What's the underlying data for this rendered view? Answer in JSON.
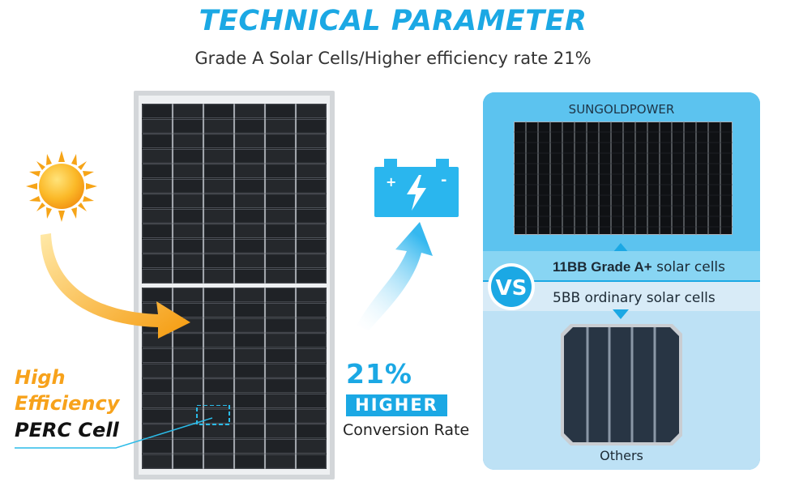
{
  "header": {
    "title": "TECHNICAL PARAMETER",
    "subtitle": "Grade A Solar Cells/Higher efficiency rate 21%"
  },
  "features": {
    "line1": "High",
    "line2": "Efficiency",
    "line3": "PERC Cell"
  },
  "stats": {
    "percent": "21%",
    "badge": "HIGHER",
    "caption": "Conversion Rate"
  },
  "comparison": {
    "brand": "SUNGOLDPOWER",
    "vs_label": "VS",
    "option_a_bold": "11BB Grade A+",
    "option_a_rest": " solar cells",
    "option_b": "5BB ordinary solar cells",
    "other_label": "Others"
  },
  "battery": {
    "plus": "+",
    "minus": "-"
  },
  "colors": {
    "accent": "#1ba8e4",
    "orange": "#f7a21b",
    "panel_cell": "#1a1c1f"
  }
}
